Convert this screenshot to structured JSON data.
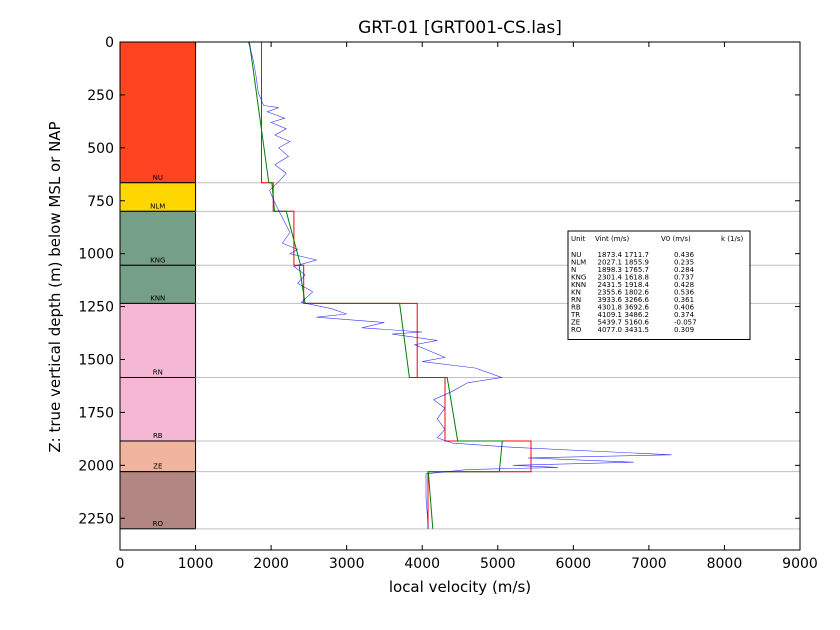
{
  "chart_data": {
    "type": "line",
    "title": "GRT-01 [GRT001-CS.las]",
    "xlabel": "local velocity (m/s)",
    "ylabel": "Z: true vertical depth (m) below MSL or NAP",
    "xlim": [
      0,
      9000
    ],
    "ylim": [
      2300,
      0
    ],
    "xticks": [
      "0",
      "1000",
      "2000",
      "3000",
      "4000",
      "5000",
      "6000",
      "7000",
      "8000",
      "9000"
    ],
    "yticks": [
      "0",
      "250",
      "500",
      "750",
      "1000",
      "1250",
      "1500",
      "1750",
      "2000",
      "2250"
    ],
    "units": [
      {
        "name": "NU",
        "top": 0,
        "base": 665,
        "color": "#ff4422"
      },
      {
        "name": "NLM",
        "top": 665,
        "base": 800,
        "color": "#ffd700"
      },
      {
        "name": "KNG",
        "top": 800,
        "base": 1055,
        "color": "#759f87"
      },
      {
        "name": "KNN",
        "top": 1055,
        "base": 1235,
        "color": "#759f87"
      },
      {
        "name": "RN",
        "top": 1235,
        "base": 1585,
        "color": "#f4b8d5"
      },
      {
        "name": "RB",
        "top": 1585,
        "base": 1885,
        "color": "#f4b8d5"
      },
      {
        "name": "ZE",
        "top": 1885,
        "base": 2030,
        "color": "#f0b59e"
      },
      {
        "name": "RO",
        "top": 2030,
        "base": 2300,
        "color": "#b28683"
      }
    ],
    "table": {
      "header": [
        "Unit",
        "Vint (m/s)",
        "V0 (m/s)",
        "k (1/s)"
      ],
      "rows": [
        [
          "NU",
          "1873.4",
          "1711.7",
          "0.436"
        ],
        [
          "NLM",
          "2027.1",
          "1855.9",
          "0.235"
        ],
        [
          "N",
          "1898.3",
          "1765.7",
          "0.284"
        ],
        [
          "KNG",
          "2301.4",
          "1618.8",
          "0.737"
        ],
        [
          "KNN",
          "2431.5",
          "1918.4",
          "0.428"
        ],
        [
          "KN",
          "2355.6",
          "1802.6",
          "0.536"
        ],
        [
          "RN",
          "3933.6",
          "3266.6",
          "0.361"
        ],
        [
          "RB",
          "4301.8",
          "3692.6",
          "0.406"
        ],
        [
          "TR",
          "4109.1",
          "3486.2",
          "0.374"
        ],
        [
          "ZE",
          "5439.7",
          "5160.6",
          "-0.057"
        ],
        [
          "RO",
          "4077.0",
          "3431.5",
          "0.309"
        ]
      ]
    },
    "series": [
      {
        "color": "#ff0000",
        "points": [
          [
            1873,
            0
          ],
          [
            1873,
            665
          ],
          [
            2027,
            665
          ],
          [
            2027,
            800
          ],
          [
            2301,
            800
          ],
          [
            2301,
            1055
          ],
          [
            2431,
            1055
          ],
          [
            2431,
            1235
          ],
          [
            3934,
            1235
          ],
          [
            3934,
            1585
          ],
          [
            4302,
            1585
          ],
          [
            4302,
            1885
          ],
          [
            5440,
            1885
          ],
          [
            5440,
            2030
          ],
          [
            4077,
            2030
          ],
          [
            4077,
            2300
          ]
        ]
      },
      {
        "color": "#008000",
        "points": [
          [
            1712,
            0
          ],
          [
            1970,
            665
          ],
          [
            2010,
            665
          ],
          [
            2045,
            800
          ],
          [
            2200,
            800
          ],
          [
            2390,
            1055
          ],
          [
            2370,
            1055
          ],
          [
            2450,
            1235
          ],
          [
            3700,
            1235
          ],
          [
            3830,
            1585
          ],
          [
            4330,
            1585
          ],
          [
            4470,
            1885
          ],
          [
            5060,
            1885
          ],
          [
            5020,
            2030
          ],
          [
            4080,
            2030
          ],
          [
            4140,
            2300
          ]
        ]
      },
      {
        "color": "#0000ff",
        "points": [
          [
            1700,
            0
          ],
          [
            1760,
            80
          ],
          [
            1800,
            160
          ],
          [
            1830,
            240
          ],
          [
            1900,
            300
          ],
          [
            2100,
            310
          ],
          [
            1950,
            330
          ],
          [
            2180,
            360
          ],
          [
            2000,
            380
          ],
          [
            2200,
            410
          ],
          [
            2050,
            440
          ],
          [
            2250,
            470
          ],
          [
            2100,
            500
          ],
          [
            2230,
            540
          ],
          [
            2050,
            580
          ],
          [
            2200,
            620
          ],
          [
            2100,
            660
          ],
          [
            1980,
            700
          ],
          [
            2050,
            760
          ],
          [
            2150,
            830
          ],
          [
            2250,
            900
          ],
          [
            2150,
            950
          ],
          [
            2350,
            980
          ],
          [
            2250,
            1000
          ],
          [
            2600,
            1030
          ],
          [
            2300,
            1060
          ],
          [
            2450,
            1100
          ],
          [
            2350,
            1140
          ],
          [
            2550,
            1180
          ],
          [
            2400,
            1230
          ],
          [
            2800,
            1260
          ],
          [
            3000,
            1285
          ],
          [
            2600,
            1300
          ],
          [
            3500,
            1325
          ],
          [
            3200,
            1350
          ],
          [
            4000,
            1370
          ],
          [
            3600,
            1380
          ],
          [
            4200,
            1410
          ],
          [
            3900,
            1430
          ],
          [
            4100,
            1460
          ],
          [
            4300,
            1490
          ],
          [
            4000,
            1510
          ],
          [
            4700,
            1540
          ],
          [
            4900,
            1565
          ],
          [
            5050,
            1585
          ],
          [
            4600,
            1610
          ],
          [
            4400,
            1650
          ],
          [
            4150,
            1690
          ],
          [
            4300,
            1730
          ],
          [
            4200,
            1780
          ],
          [
            4300,
            1830
          ],
          [
            4200,
            1870
          ],
          [
            4400,
            1895
          ],
          [
            5200,
            1915
          ],
          [
            7300,
            1950
          ],
          [
            5400,
            1965
          ],
          [
            6800,
            1985
          ],
          [
            5200,
            2000
          ],
          [
            5800,
            2010
          ],
          [
            4600,
            2020
          ],
          [
            4050,
            2040
          ],
          [
            4050,
            2150
          ],
          [
            4080,
            2300
          ]
        ]
      }
    ]
  }
}
